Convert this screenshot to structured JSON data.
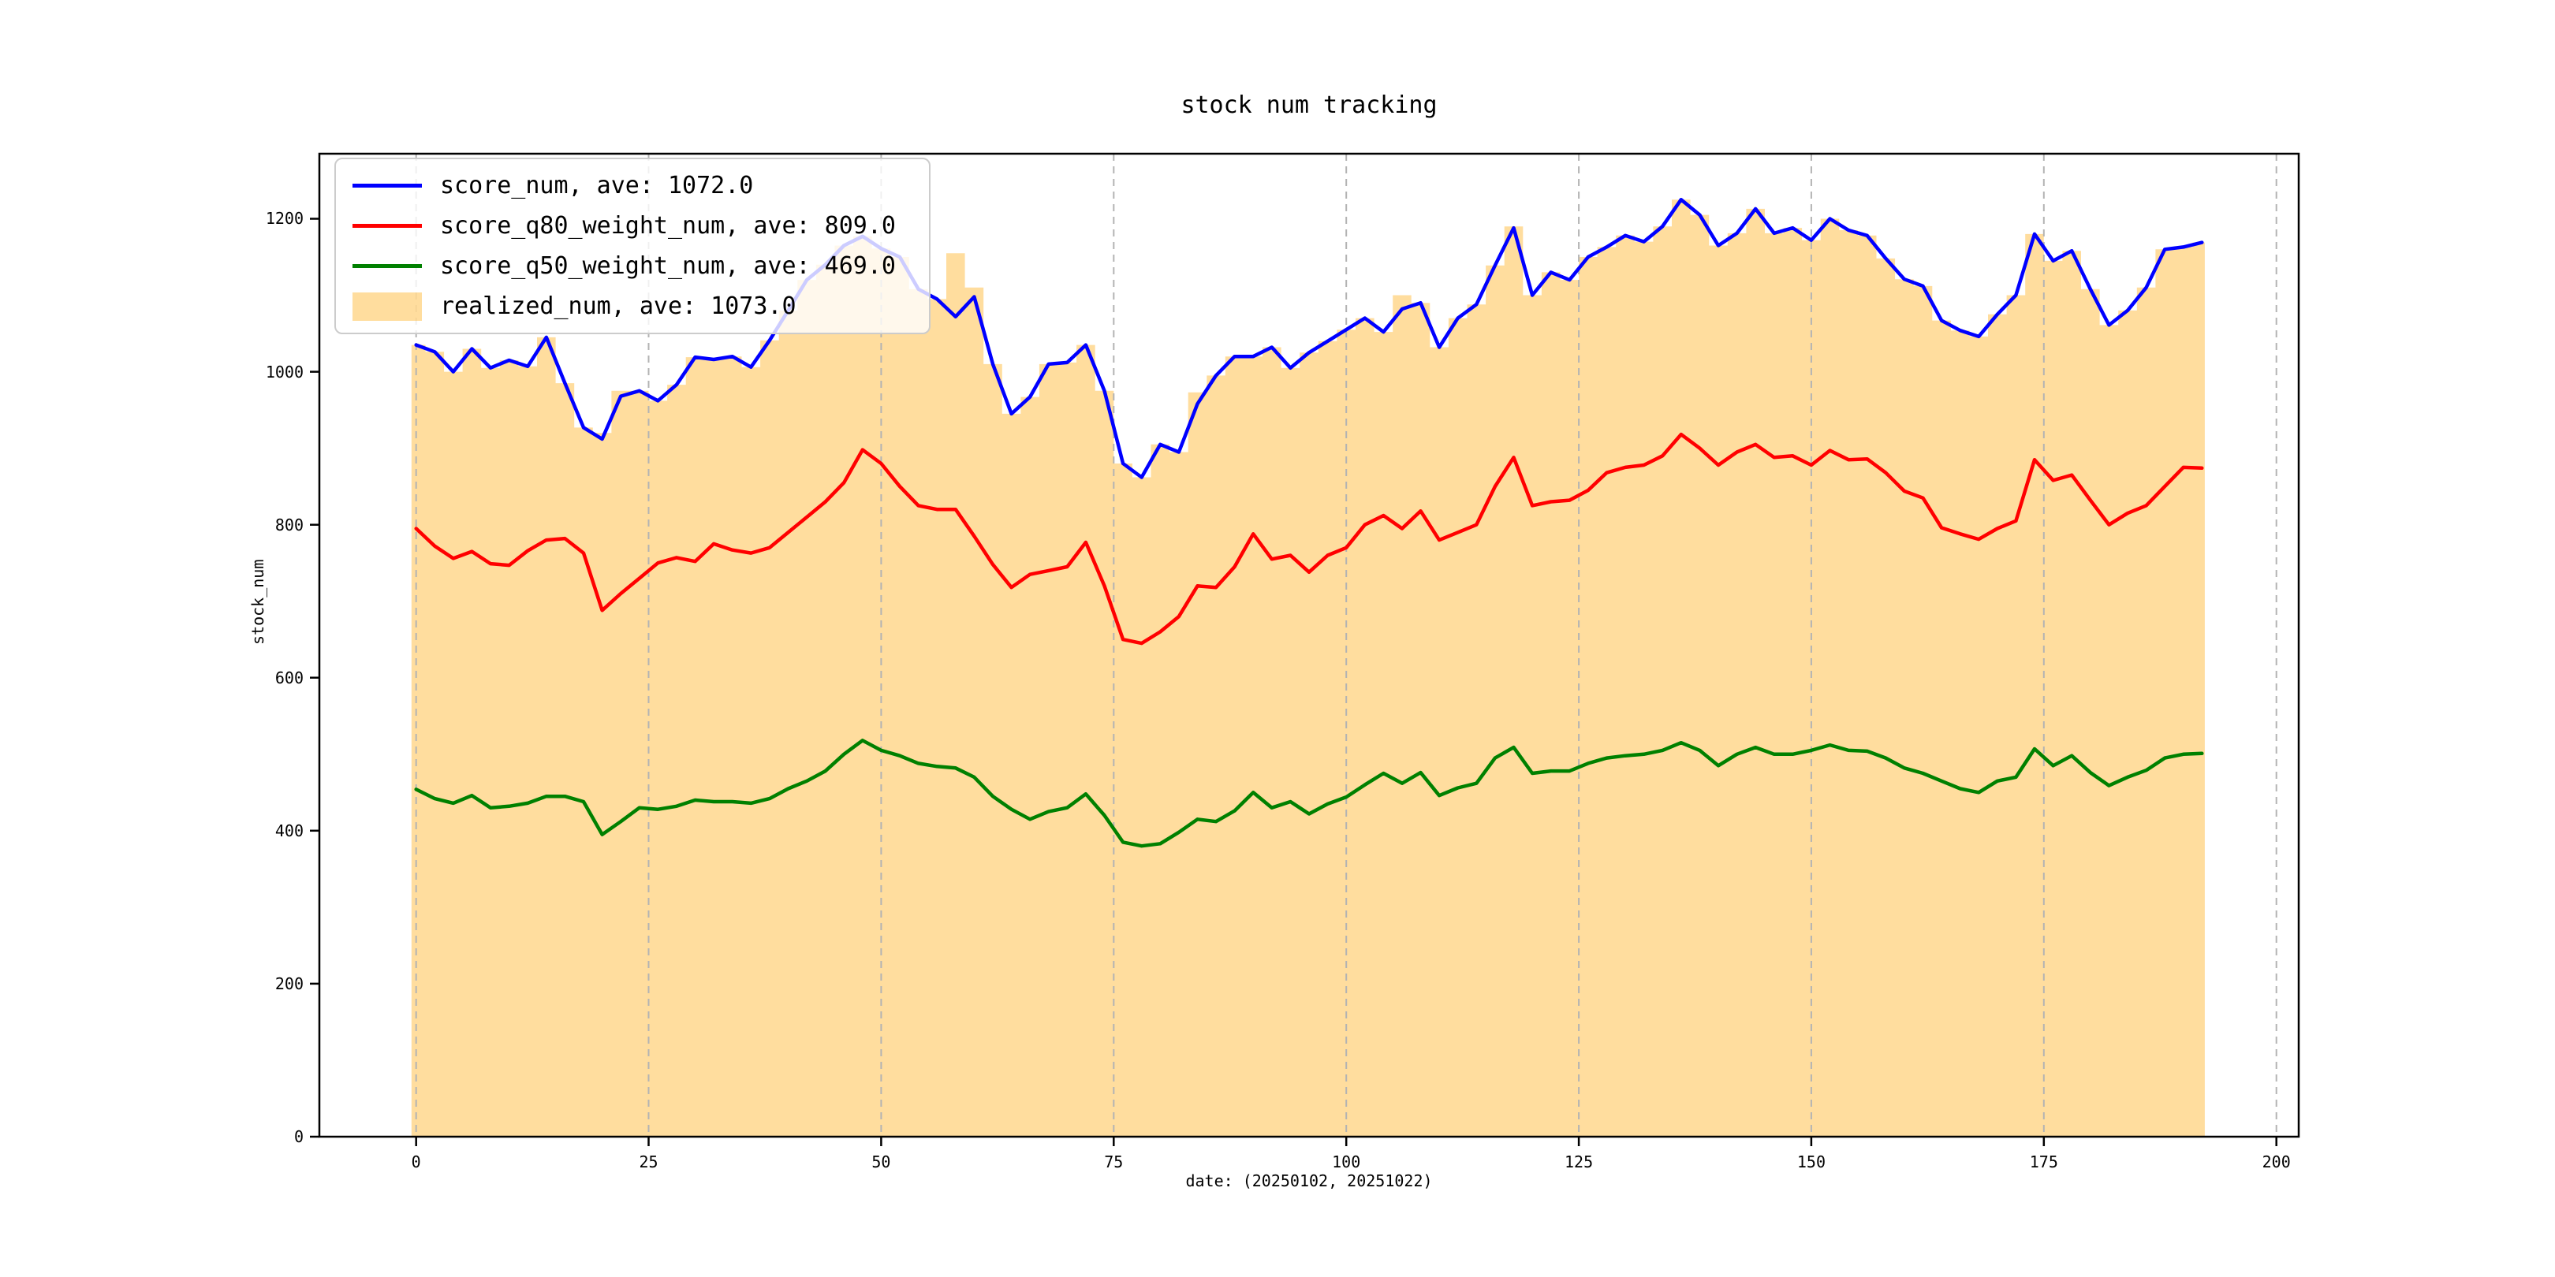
{
  "figure": {
    "title": "stock num tracking",
    "xlabel": "date: (20250102, 20251022)",
    "ylabel": "stock_num"
  },
  "legend": {
    "items": [
      {
        "label": "score_num, ave: 1072.0",
        "type": "line",
        "color": "#0000ff"
      },
      {
        "label": "score_q80_weight_num, ave: 809.0",
        "type": "line",
        "color": "#ff0000"
      },
      {
        "label": "score_q50_weight_num, ave: 469.0",
        "type": "line",
        "color": "#008000"
      },
      {
        "label": "realized_num, ave: 1073.0",
        "type": "patch",
        "color": "rgba(255,165,0,0.38)"
      }
    ]
  },
  "chart_data": {
    "type": "line",
    "title": "stock num tracking",
    "xlabel": "date: (20250102, 20251022)",
    "ylabel": "stock_num",
    "x_step": 2,
    "x_start": 0,
    "x_end": 192,
    "xlim": [
      -10.4,
      202.4
    ],
    "ylim": [
      0,
      1285
    ],
    "xticks": [
      0,
      25,
      50,
      75,
      100,
      125,
      150,
      175,
      200
    ],
    "yticks": [
      0,
      200,
      400,
      600,
      800,
      1000,
      1200
    ],
    "grid": {
      "axis": "x",
      "style": "dashed",
      "color": "#b3b3b3"
    },
    "legend_position": "upper-left",
    "series": [
      {
        "name": "score_num",
        "average": 1072.0,
        "color": "#0000ff",
        "style": "line",
        "values": [
          1035,
          1026,
          1000,
          1030,
          1005,
          1015,
          1007,
          1045,
          985,
          927,
          912,
          968,
          975,
          962,
          983,
          1019,
          1016,
          1020,
          1006,
          1041,
          1080,
          1120,
          1140,
          1165,
          1177,
          1161,
          1150,
          1108,
          1095,
          1072,
          1098,
          1010,
          945,
          967,
          1010,
          1012,
          1035,
          975,
          880,
          862,
          905,
          895,
          958,
          995,
          1020,
          1020,
          1032,
          1005,
          1025,
          1040,
          1055,
          1070,
          1052,
          1082,
          1090,
          1032,
          1070,
          1088,
          1139,
          1188,
          1100,
          1130,
          1120,
          1150,
          1163,
          1178,
          1170,
          1190,
          1225,
          1205,
          1165,
          1181,
          1213,
          1181,
          1188,
          1172,
          1200,
          1185,
          1178,
          1148,
          1121,
          1112,
          1067,
          1054,
          1046,
          1075,
          1100,
          1180,
          1145,
          1158,
          1108,
          1061,
          1080,
          1110,
          1160,
          1163,
          1169
        ]
      },
      {
        "name": "score_q80_weight_num",
        "average": 809.0,
        "color": "#ff0000",
        "style": "line",
        "values": [
          795,
          772,
          756,
          765,
          749,
          747,
          766,
          780,
          782,
          763,
          688,
          710,
          730,
          750,
          757,
          752,
          775,
          767,
          763,
          770,
          790,
          810,
          830,
          855,
          898,
          880,
          850,
          825,
          820,
          820,
          785,
          748,
          718,
          735,
          740,
          745,
          777,
          720,
          650,
          645,
          660,
          680,
          720,
          718,
          745,
          788,
          755,
          760,
          738,
          760,
          770,
          800,
          812,
          795,
          818,
          780,
          790,
          800,
          850,
          888,
          825,
          830,
          832,
          845,
          868,
          875,
          878,
          890,
          918,
          900,
          878,
          895,
          905,
          888,
          890,
          878,
          897,
          885,
          886,
          868,
          844,
          835,
          796,
          788,
          781,
          795,
          805,
          885,
          858,
          865,
          832,
          800,
          815,
          825,
          850,
          875,
          874
        ]
      },
      {
        "name": "score_q50_weight_num",
        "average": 469.0,
        "color": "#008000",
        "style": "line",
        "values": [
          454,
          442,
          436,
          446,
          430,
          432,
          436,
          445,
          445,
          438,
          395,
          412,
          430,
          428,
          432,
          440,
          438,
          438,
          436,
          442,
          455,
          465,
          478,
          500,
          518,
          505,
          498,
          488,
          484,
          482,
          470,
          445,
          428,
          415,
          425,
          430,
          448,
          420,
          385,
          380,
          383,
          398,
          415,
          412,
          426,
          450,
          430,
          438,
          422,
          435,
          444,
          460,
          475,
          462,
          476,
          446,
          456,
          462,
          495,
          509,
          475,
          478,
          478,
          488,
          495,
          498,
          500,
          505,
          515,
          505,
          485,
          500,
          509,
          500,
          500,
          505,
          512,
          505,
          504,
          495,
          482,
          475,
          465,
          455,
          450,
          465,
          470,
          507,
          485,
          498,
          476,
          459,
          470,
          479,
          495,
          500,
          501
        ]
      },
      {
        "name": "realized_num",
        "average": 1073.0,
        "color": "rgba(255,165,0,0.38)",
        "style": "step-area",
        "values": [
          1035,
          1026,
          1000,
          1030,
          1005,
          1015,
          1007,
          1045,
          985,
          927,
          920,
          975,
          975,
          962,
          983,
          1019,
          1016,
          1020,
          1006,
          1041,
          1080,
          1120,
          1140,
          1165,
          1177,
          1161,
          1150,
          1108,
          1095,
          1155,
          1110,
          1010,
          945,
          967,
          1010,
          1012,
          1035,
          975,
          880,
          862,
          905,
          895,
          973,
          995,
          1020,
          1020,
          1032,
          1005,
          1025,
          1040,
          1055,
          1070,
          1052,
          1100,
          1090,
          1032,
          1070,
          1088,
          1139,
          1190,
          1100,
          1130,
          1120,
          1150,
          1163,
          1178,
          1170,
          1190,
          1225,
          1205,
          1165,
          1181,
          1213,
          1181,
          1188,
          1172,
          1200,
          1185,
          1178,
          1148,
          1121,
          1112,
          1067,
          1054,
          1046,
          1075,
          1100,
          1180,
          1145,
          1158,
          1108,
          1061,
          1080,
          1110,
          1160,
          1163,
          1169
        ]
      }
    ]
  },
  "layout_colors": {
    "frame": "#000000",
    "grid": "#b3b3b3",
    "legend_border": "#cccccc"
  }
}
